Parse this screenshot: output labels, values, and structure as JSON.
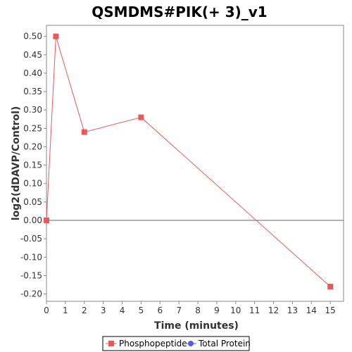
{
  "chart_data": {
    "type": "line",
    "title": "QSMDMS#PIK(+ 3)_v1",
    "xlabel": "Time (minutes)",
    "ylabel": "log2(dDAVP/Control)",
    "xlim": [
      0,
      15.7
    ],
    "ylim": [
      -0.22,
      0.53
    ],
    "x_ticks": [
      0,
      1,
      2,
      3,
      4,
      5,
      6,
      7,
      8,
      9,
      10,
      11,
      12,
      13,
      14,
      15
    ],
    "y_ticks": [
      0.5,
      0.45,
      0.4,
      0.35,
      0.3,
      0.25,
      0.2,
      0.15,
      0.1,
      0.05,
      0.0,
      -0.05,
      -0.1,
      -0.15,
      -0.2
    ],
    "y_tick_labels": [
      "0.50",
      "0.45",
      "0.40",
      "0.35",
      "0.30",
      "0.25",
      "0.20",
      "0.15",
      "0.10",
      "0.05",
      "0.00",
      "-0.05",
      "-0.10",
      "-0.15",
      "-0.20"
    ],
    "zero_line": true,
    "grid": false,
    "legend_position": "bottom",
    "series": [
      {
        "name": "Phosphopeptide",
        "color": "#e8595c",
        "marker": "square",
        "x": [
          0,
          0.5,
          2,
          5,
          15
        ],
        "y": [
          0.0,
          0.5,
          0.24,
          0.28,
          -0.18
        ]
      },
      {
        "name": "Total Protein",
        "color": "#5a5ae8",
        "marker": "circle",
        "x": [],
        "y": []
      }
    ]
  }
}
